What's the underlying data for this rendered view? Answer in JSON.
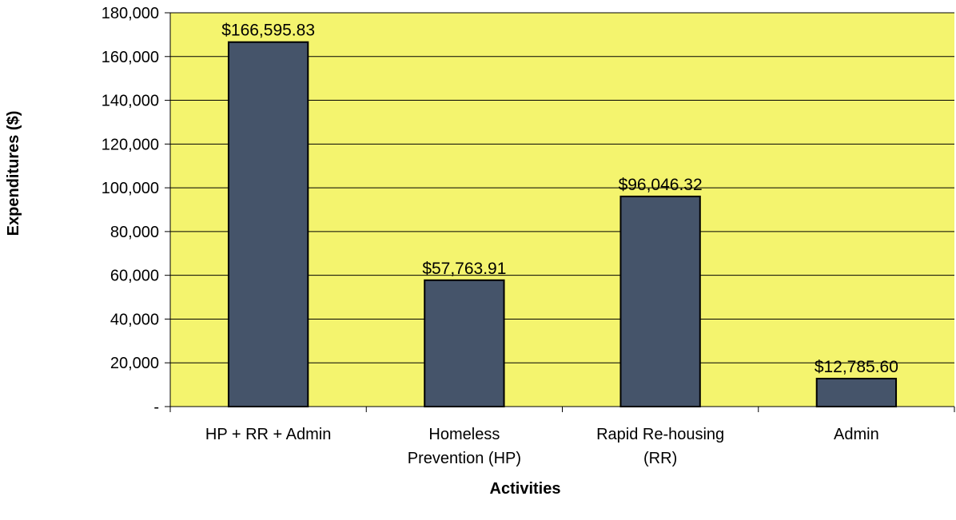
{
  "chart_data": {
    "type": "bar",
    "categories": [
      [
        "HP + RR + Admin"
      ],
      [
        "Homeless",
        "Prevention (HP)"
      ],
      [
        "Rapid Re-housing",
        "(RR)"
      ],
      [
        "Admin"
      ]
    ],
    "values": [
      166595.83,
      57763.91,
      96046.32,
      12785.6
    ],
    "data_labels": [
      "$166,595.83",
      "$57,763.91",
      "$96,046.32",
      "$12,785.60"
    ],
    "title": "",
    "xlabel": "Activities",
    "ylabel": "Expenditures ($)",
    "ylim": [
      0,
      180000
    ],
    "yticks": [
      0,
      20000,
      40000,
      60000,
      80000,
      100000,
      120000,
      140000,
      160000,
      180000
    ],
    "ytick_labels": [
      "-",
      "20,000",
      "40,000",
      "60,000",
      "80,000",
      "100,000",
      "120,000",
      "140,000",
      "160,000",
      "180,000"
    ],
    "grid": true,
    "legend": "none",
    "colors": {
      "plot_background": "#F4F46E",
      "bar_fill": "#45546A",
      "bar_stroke": "#000000",
      "gridline": "#000000"
    }
  }
}
